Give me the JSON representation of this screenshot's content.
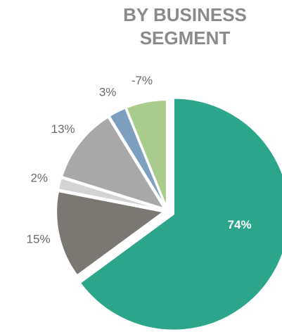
{
  "chart_data": {
    "type": "pie",
    "title_lines": [
      "BY BUSINESS",
      "SEGMENT"
    ],
    "values": [
      74,
      15,
      2,
      13,
      3,
      -7
    ],
    "value_labels": [
      "74%",
      "15%",
      "2%",
      "13%",
      "3%",
      "-7%"
    ],
    "colors": [
      "#2ba68b",
      "#7b7773",
      "#d4d4d4",
      "#a8a8a8",
      "#7d9fc0",
      "#a9cb8c"
    ]
  }
}
